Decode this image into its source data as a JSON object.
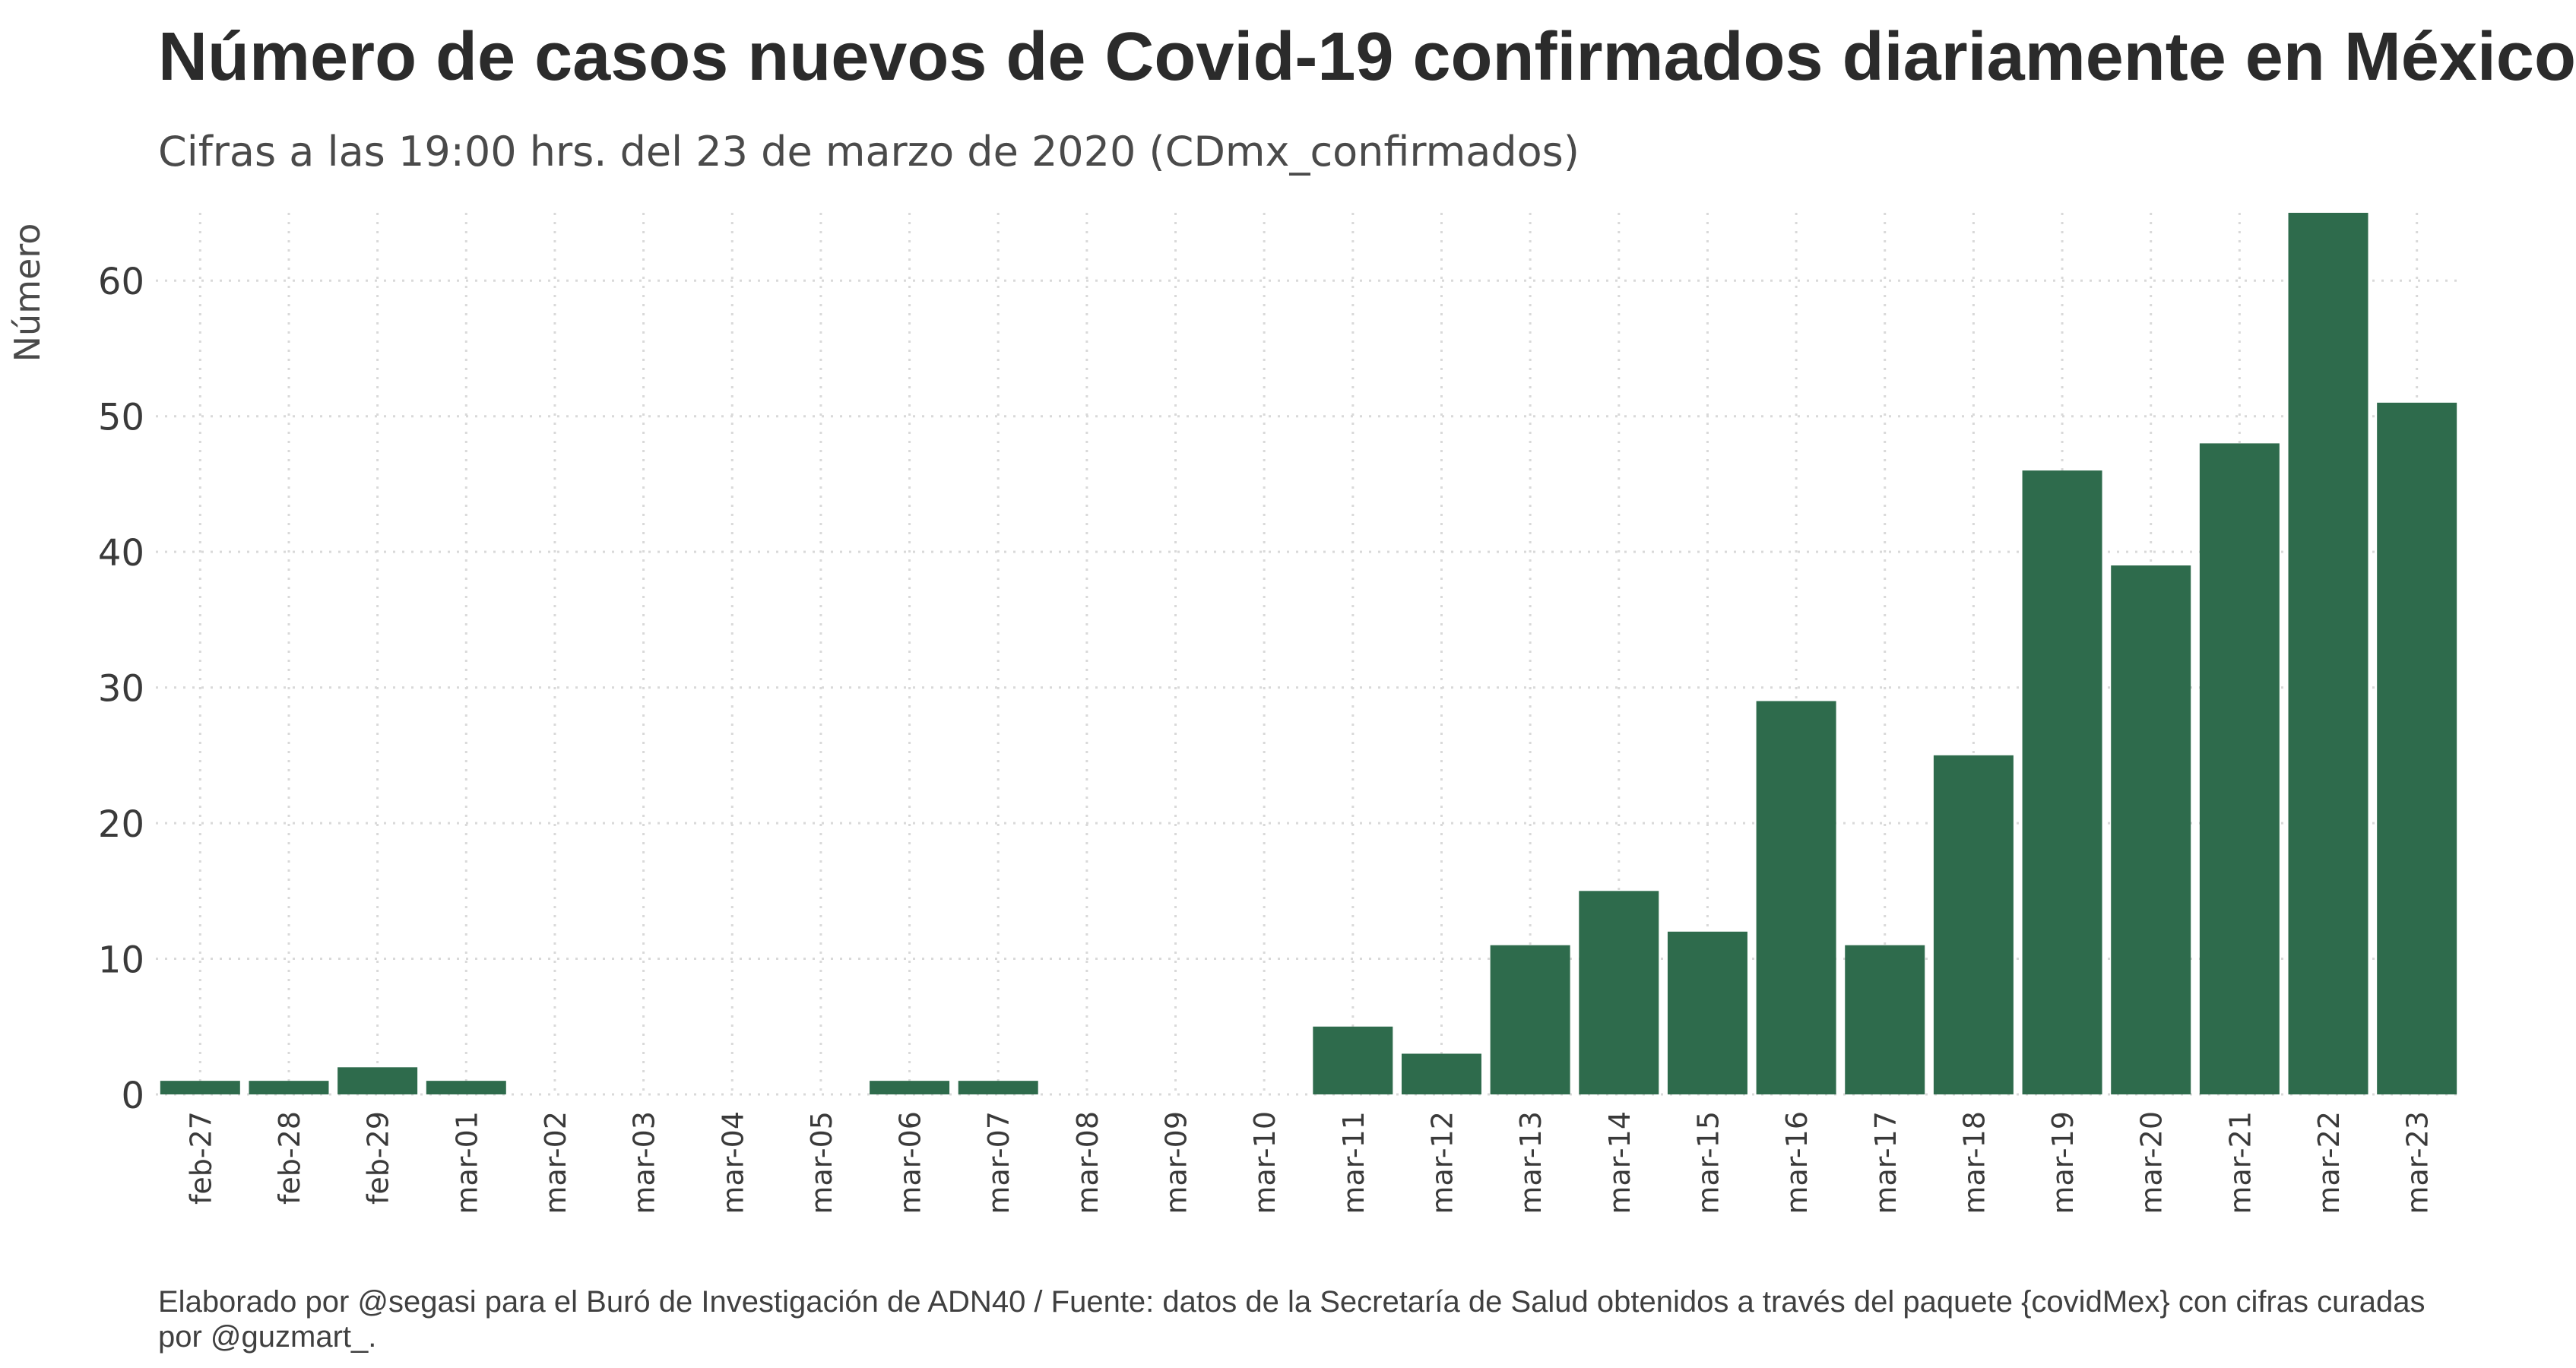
{
  "chart_data": {
    "type": "bar",
    "title": "Número de casos nuevos de Covid-19 confirmados diariamente en México",
    "subtitle": "Cifras a las 19:00 hrs. del 23 de marzo de 2020 (CDmx_confirmados)",
    "xlabel": "",
    "ylabel": "Número",
    "ylim": [
      0,
      65
    ],
    "yticks": [
      0,
      10,
      20,
      30,
      40,
      50,
      60
    ],
    "grid": true,
    "bar_color": "#2e6b4c",
    "categories": [
      "feb-27",
      "feb-28",
      "feb-29",
      "mar-01",
      "mar-02",
      "mar-03",
      "mar-04",
      "mar-05",
      "mar-06",
      "mar-07",
      "mar-08",
      "mar-09",
      "mar-10",
      "mar-11",
      "mar-12",
      "mar-13",
      "mar-14",
      "mar-15",
      "mar-16",
      "mar-17",
      "mar-18",
      "mar-19",
      "mar-20",
      "mar-21",
      "mar-22",
      "mar-23"
    ],
    "values": [
      1,
      1,
      2,
      1,
      0,
      0,
      0,
      0,
      1,
      1,
      0,
      0,
      0,
      5,
      3,
      11,
      15,
      12,
      29,
      11,
      25,
      46,
      39,
      48,
      65,
      51
    ],
    "caption": "Elaborado por @segasi para el Buró de Investigación de ADN40 / Fuente: datos de la Secretaría de Salud obtenidos a través del paquete {covidMex} con cifras curadas por @guzmart_."
  }
}
